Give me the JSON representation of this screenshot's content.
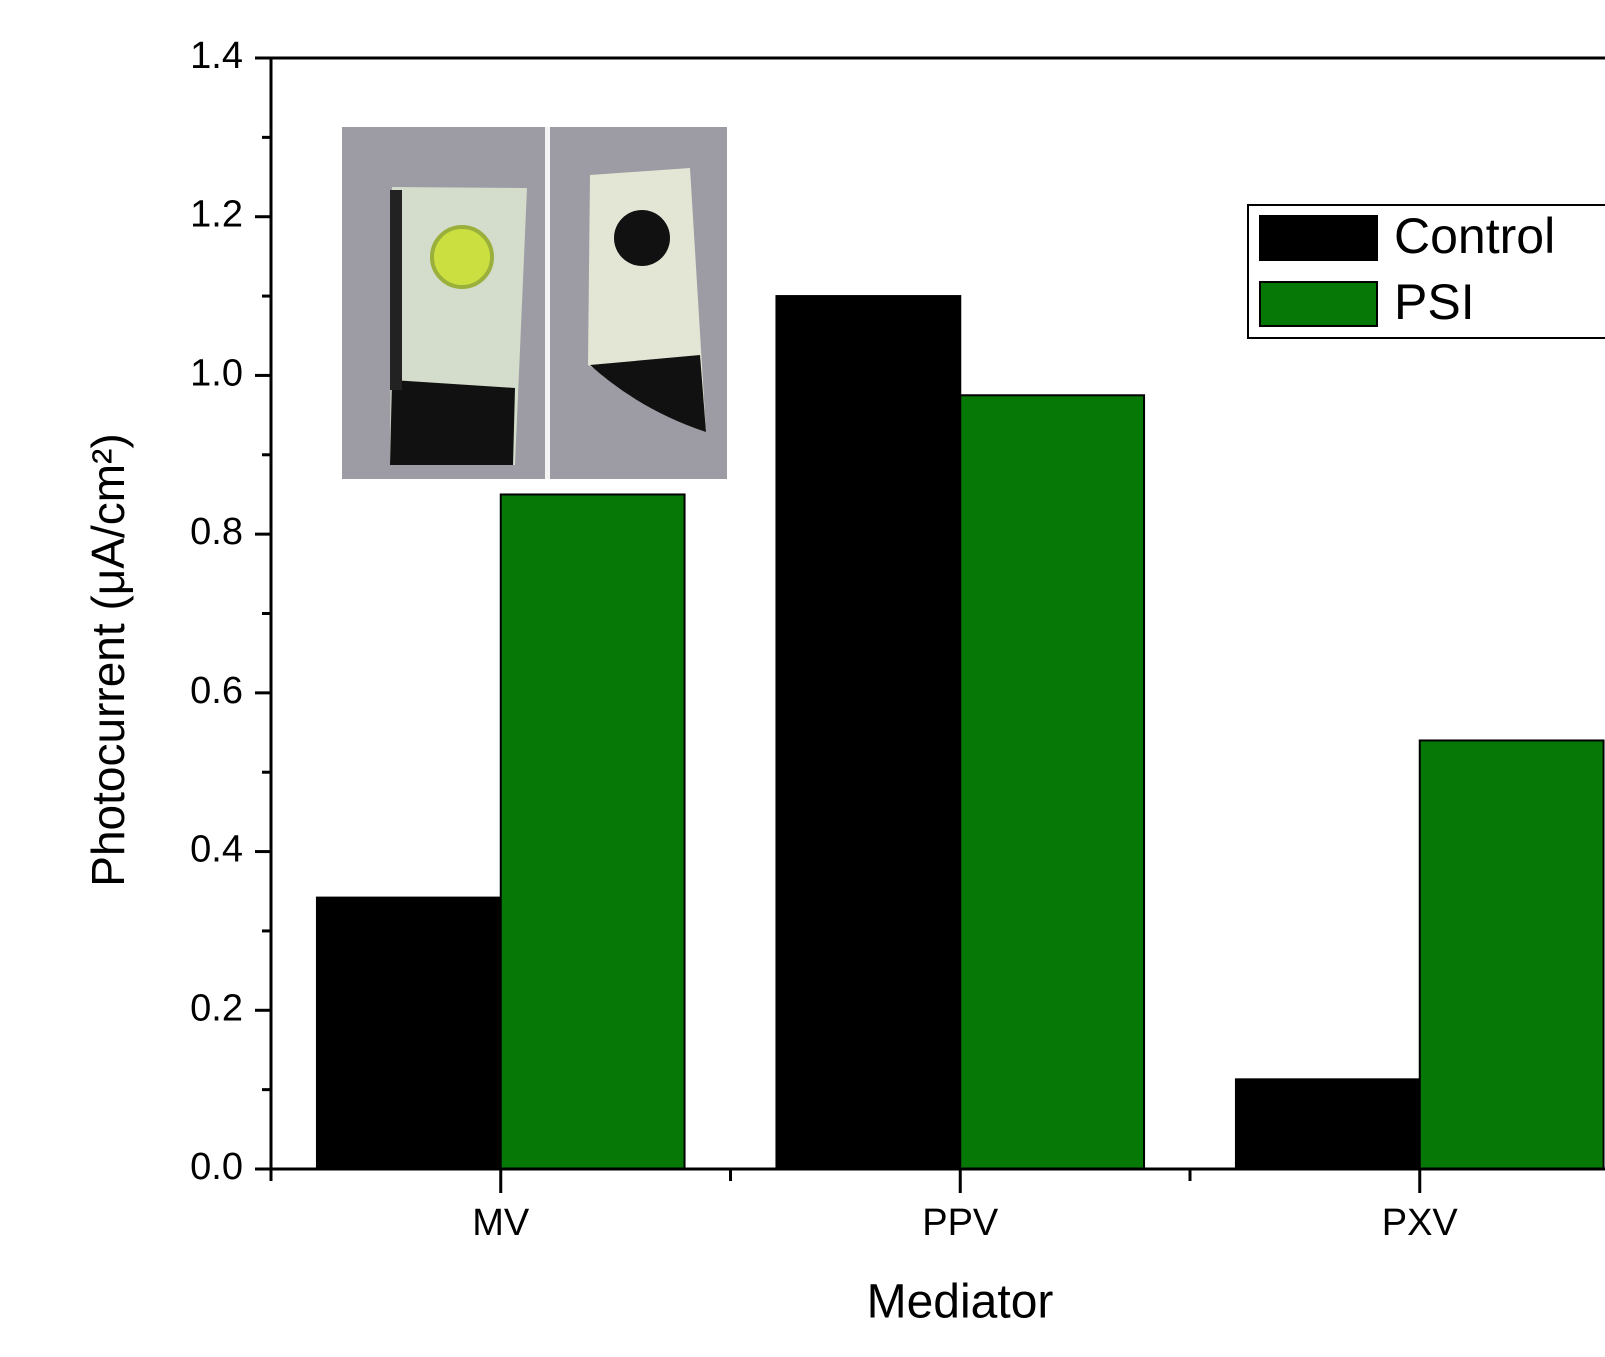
{
  "chart_data": {
    "type": "bar",
    "x_label": "Mediator",
    "y_label": "Photocurrent (μA/cm²)",
    "categories": [
      "MV",
      "PPV",
      "PXV"
    ],
    "series": [
      {
        "name": "Control",
        "color": "#000000",
        "values": [
          0.342,
          1.1,
          0.113
        ]
      },
      {
        "name": "PSI",
        "color": "#067806",
        "values": [
          0.85,
          0.975,
          0.54
        ]
      }
    ],
    "ylim": [
      0,
      1.4
    ],
    "yticks": [
      {
        "value": 0,
        "label": "0.0"
      },
      0.2,
      0.4,
      0.6,
      0.8,
      {
        "value": 1,
        "label": "1.0"
      },
      1.2,
      1.4
    ],
    "yminor_ticks": [
      0.1,
      0.3,
      0.5,
      0.7,
      0.9,
      1.1,
      1.3
    ],
    "grid": false,
    "legend": "upper right"
  }
}
